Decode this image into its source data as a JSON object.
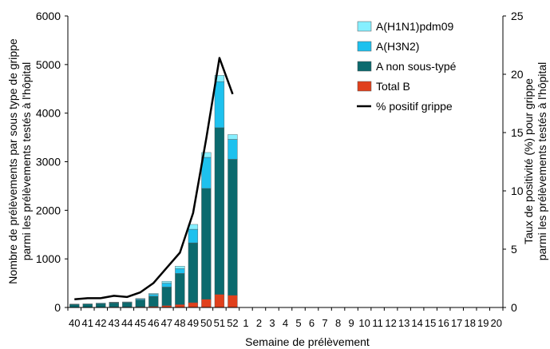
{
  "chart_data": {
    "type": "bar",
    "stacked": true,
    "title": "",
    "xlabel": "Semaine de prélèvement",
    "ylabel": "Nombre de prélèvements par sous type de grippe parmi les prélèvements testés à l'hôpital",
    "ylabel_lines": [
      "Nombre de prélèvements par sous type de grippe",
      "parmi les prélèvements testés à l'hôpital"
    ],
    "y2label": "Taux de positivité (%) pour grippe parmi les prélèvements testés à l'hôpital",
    "y2label_lines": [
      "Taux de positivité (%) pour grippe",
      "parmi les prélèvements testés à l'hôpital"
    ],
    "ylim": [
      0,
      6000
    ],
    "y2lim": [
      0,
      25
    ],
    "yticks": [
      0,
      1000,
      2000,
      3000,
      4000,
      5000,
      6000
    ],
    "y2ticks": [
      0,
      5,
      10,
      15,
      20,
      25
    ],
    "grid": false,
    "legend_position": "top-right",
    "categories": [
      "40",
      "41",
      "42",
      "43",
      "44",
      "45",
      "46",
      "47",
      "48",
      "49",
      "50",
      "51",
      "52",
      "1",
      "2",
      "3",
      "4",
      "5",
      "6",
      "7",
      "8",
      "9",
      "10",
      "11",
      "12",
      "13",
      "14",
      "15",
      "16",
      "17",
      "18",
      "19",
      "20"
    ],
    "series": [
      {
        "name": "Total B",
        "color": "#e0401c",
        "axis": "left",
        "values": [
          5,
          5,
          5,
          10,
          10,
          15,
          20,
          40,
          60,
          100,
          170,
          270,
          250,
          null,
          null,
          null,
          null,
          null,
          null,
          null,
          null,
          null,
          null,
          null,
          null,
          null,
          null,
          null,
          null,
          null,
          null,
          null,
          null
        ]
      },
      {
        "name": "A non sous-typé",
        "color": "#0b6a6e",
        "axis": "left",
        "values": [
          60,
          65,
          75,
          85,
          90,
          140,
          210,
          380,
          640,
          1230,
          2280,
          3430,
          2800,
          null,
          null,
          null,
          null,
          null,
          null,
          null,
          null,
          null,
          null,
          null,
          null,
          null,
          null,
          null,
          null,
          null,
          null,
          null,
          null
        ]
      },
      {
        "name": "A(H3N2)",
        "color": "#1ec1ee",
        "axis": "left",
        "values": [
          5,
          5,
          10,
          10,
          10,
          20,
          40,
          80,
          100,
          280,
          640,
          950,
          410,
          null,
          null,
          null,
          null,
          null,
          null,
          null,
          null,
          null,
          null,
          null,
          null,
          null,
          null,
          null,
          null,
          null,
          null,
          null,
          null
        ]
      },
      {
        "name": "A(H1N1)pdm09",
        "color": "#86efff",
        "axis": "left",
        "values": [
          0,
          0,
          0,
          5,
          5,
          10,
          20,
          40,
          50,
          100,
          100,
          130,
          100,
          null,
          null,
          null,
          null,
          null,
          null,
          null,
          null,
          null,
          null,
          null,
          null,
          null,
          null,
          null,
          null,
          null,
          null,
          null,
          null
        ]
      },
      {
        "name": "% positif grippe",
        "type": "line",
        "color": "#000000",
        "axis": "right",
        "values": [
          0.7,
          0.8,
          0.8,
          1.0,
          0.9,
          1.3,
          2.1,
          3.4,
          4.7,
          8.1,
          14.5,
          21.4,
          18.3,
          null,
          null,
          null,
          null,
          null,
          null,
          null,
          null,
          null,
          null,
          null,
          null,
          null,
          null,
          null,
          null,
          null,
          null,
          null,
          null
        ]
      }
    ],
    "legend_order": [
      "A(H1N1)pdm09",
      "A(H3N2)",
      "A non sous-typé",
      "Total B",
      "% positif grippe"
    ]
  }
}
